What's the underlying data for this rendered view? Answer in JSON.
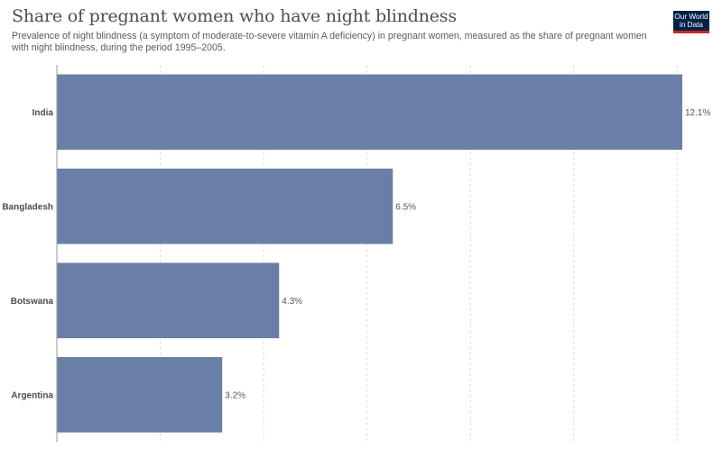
{
  "header": {
    "title": "Share of pregnant women who have night blindness",
    "subtitle": "Prevalence of night blindness (a symptom of moderate-to-severe vitamin A deficiency) in pregnant women, measured as the share of pregnant women with night blindness, during the period 1995–2005.",
    "logo_line1": "Our World",
    "logo_line2": "in Data"
  },
  "colors": {
    "bar": "#6a7fa8",
    "grid": "#dddddd",
    "logo_bg": "#002147",
    "logo_accent": "#ce261e"
  },
  "chart_data": {
    "type": "bar",
    "orientation": "horizontal",
    "categories": [
      "India",
      "Bangladesh",
      "Botswana",
      "Argentina"
    ],
    "values": [
      12.1,
      6.5,
      4.3,
      3.2
    ],
    "value_labels": [
      "12.1%",
      "6.5%",
      "4.3%",
      "3.2%"
    ],
    "unit": "%",
    "xlim": [
      0,
      12.1
    ],
    "gridlines": [
      0,
      2,
      4,
      6,
      8,
      10,
      12
    ],
    "grid": true
  }
}
